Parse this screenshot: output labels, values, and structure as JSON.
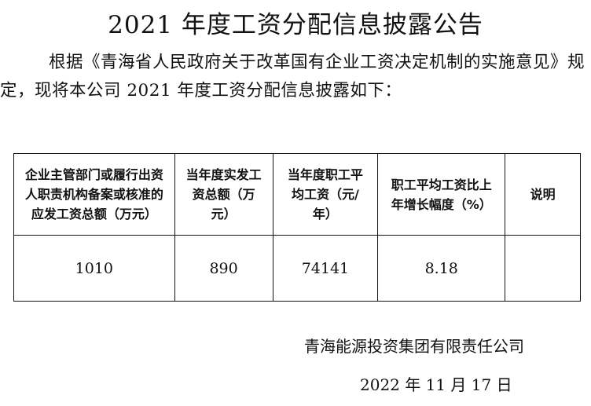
{
  "title": "2021 年度工资分配信息披露公告",
  "intro": "根据《青海省人民政府关于改革国有企业工资决定机制的实施意见》规定，现将本公司 2021 年度工资分配信息披露如下：",
  "table": {
    "headers": [
      "企业主管部门或履行出资人职责机构备案或核准的应发工资总额（万元）",
      "当年度实发工资总额（万元）",
      "当年度职工平均工资（元/年）",
      "职工平均工资比上年增长幅度（%）",
      "说明"
    ],
    "rows": [
      [
        "1010",
        "890",
        "74141",
        "8.18",
        ""
      ]
    ]
  },
  "company": "青海能源投资集团有限责任公司",
  "date": "2022 年 11 月 17 日"
}
